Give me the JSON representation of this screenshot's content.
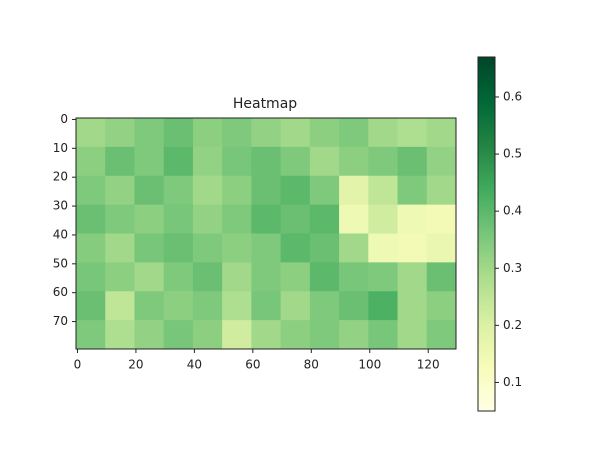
{
  "chart_data": {
    "type": "heatmap",
    "title": "Heatmap",
    "values": [
      [
        0.3,
        0.32,
        0.35,
        0.38,
        0.33,
        0.35,
        0.32,
        0.3,
        0.33,
        0.35,
        0.3,
        0.28,
        0.3
      ],
      [
        0.33,
        0.38,
        0.35,
        0.4,
        0.32,
        0.36,
        0.38,
        0.35,
        0.3,
        0.33,
        0.35,
        0.38,
        0.32
      ],
      [
        0.35,
        0.32,
        0.38,
        0.35,
        0.3,
        0.33,
        0.38,
        0.4,
        0.35,
        0.18,
        0.25,
        0.35,
        0.3
      ],
      [
        0.38,
        0.35,
        0.33,
        0.36,
        0.32,
        0.35,
        0.4,
        0.38,
        0.4,
        0.15,
        0.22,
        0.15,
        0.14
      ],
      [
        0.34,
        0.3,
        0.36,
        0.38,
        0.35,
        0.33,
        0.35,
        0.4,
        0.38,
        0.3,
        0.15,
        0.14,
        0.16
      ],
      [
        0.36,
        0.33,
        0.3,
        0.35,
        0.38,
        0.3,
        0.35,
        0.33,
        0.4,
        0.36,
        0.35,
        0.3,
        0.38
      ],
      [
        0.38,
        0.25,
        0.35,
        0.33,
        0.35,
        0.28,
        0.36,
        0.3,
        0.35,
        0.38,
        0.42,
        0.3,
        0.33
      ],
      [
        0.35,
        0.28,
        0.32,
        0.36,
        0.33,
        0.22,
        0.3,
        0.33,
        0.35,
        0.32,
        0.36,
        0.3,
        0.35
      ]
    ],
    "xlim": [
      -0.5,
      129.5
    ],
    "ylim": [
      79.5,
      -0.5
    ],
    "xticks": [
      0,
      20,
      40,
      60,
      80,
      100,
      120
    ],
    "yticks": [
      0,
      10,
      20,
      30,
      40,
      50,
      60,
      70
    ],
    "clim": [
      0.05,
      0.67
    ],
    "cticks": [
      0.1,
      0.2,
      0.3,
      0.4,
      0.5,
      0.6
    ],
    "colors": [
      "#ffffe5",
      "#f7fcb9",
      "#d9f0a3",
      "#addd8e",
      "#78c679",
      "#41ab5d",
      "#238443",
      "#006837",
      "#004529"
    ]
  }
}
